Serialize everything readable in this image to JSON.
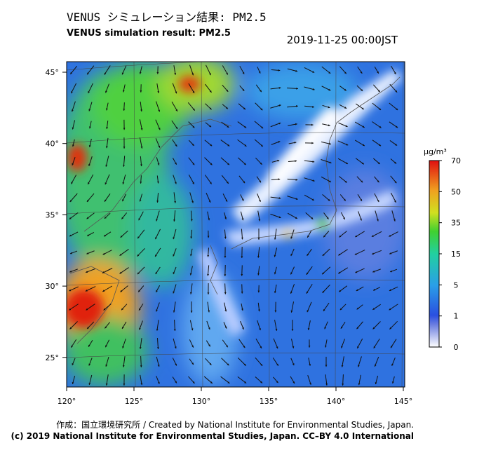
{
  "header": {
    "title_ja": "VENUS シミュレーション結果: PM2.5",
    "title_en": "VENUS simulation result: PM2.5",
    "datetime": "2019-11-25 00:00JST"
  },
  "map": {
    "lat_labels": [
      "45°",
      "40°",
      "35°",
      "30°",
      "25°"
    ],
    "lon_labels": [
      "120°",
      "125°",
      "130°",
      "135°",
      "140°",
      "145°"
    ]
  },
  "colorbar": {
    "unit": "μg/m³",
    "tick_labels": [
      "70",
      "50",
      "35",
      "15",
      "5",
      "1",
      "0"
    ]
  },
  "footer": {
    "credit": "作成：国立環境研究所 / Created by National Institute for Environmental Studies, Japan.",
    "license": "(c) 2019 National Institute for Environmental Studies, Japan. CC–BY 4.0 International"
  }
}
